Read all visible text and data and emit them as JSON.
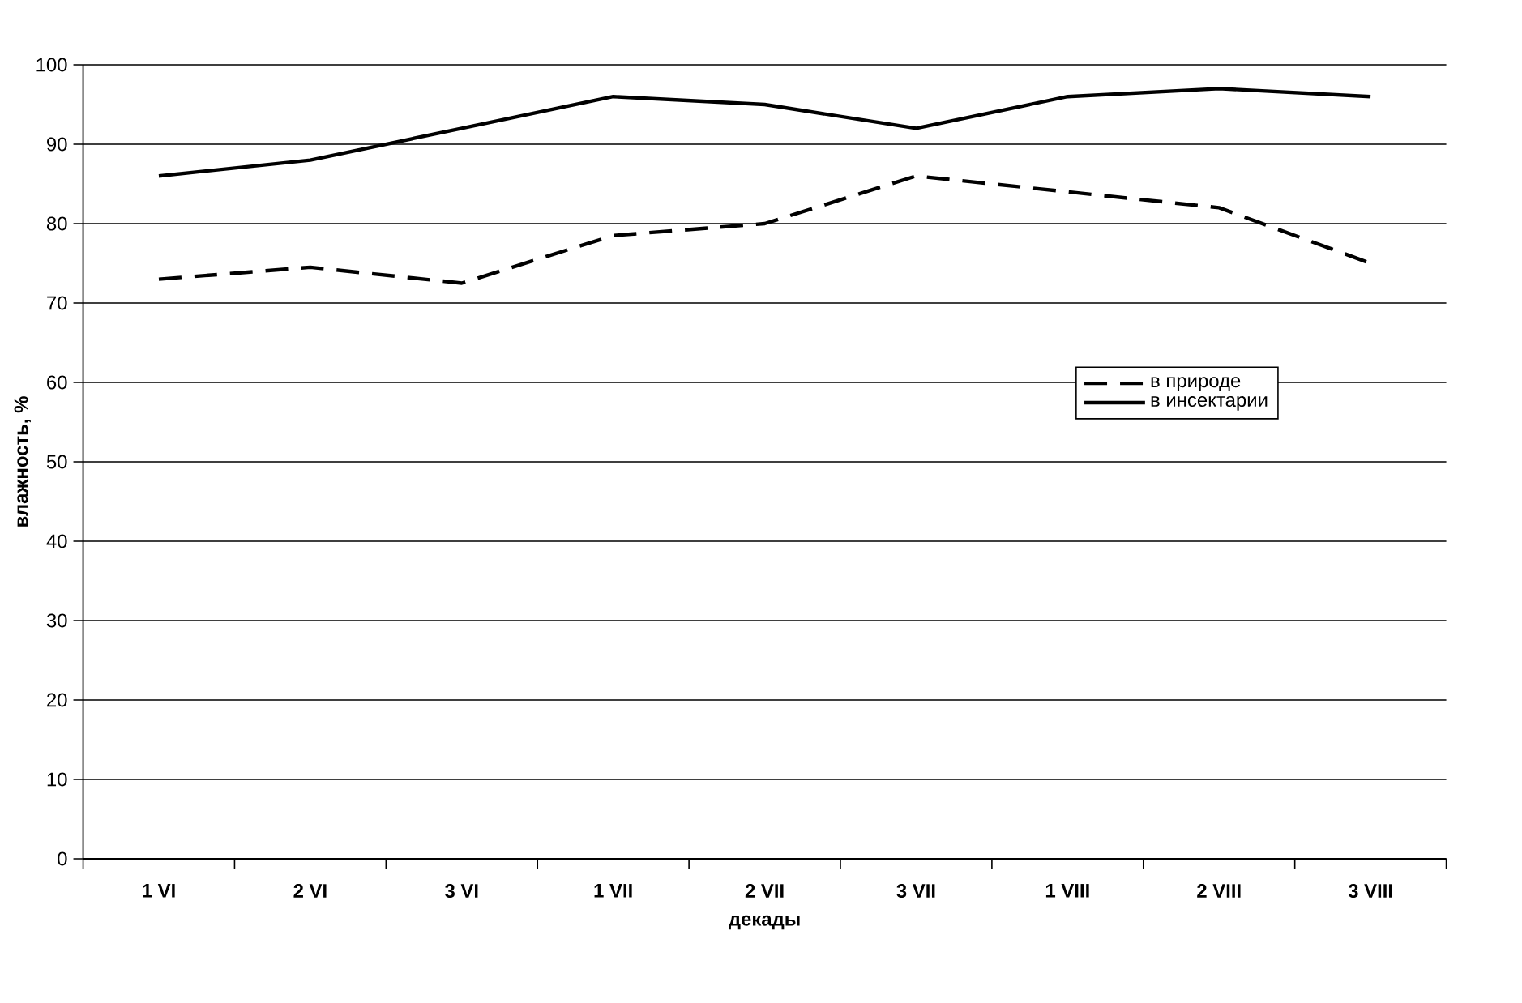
{
  "chart_data": {
    "type": "line",
    "xlabel": "декады",
    "ylabel": "влажность, %",
    "categories": [
      "1 VI",
      "2 VI",
      "3 VI",
      "1 VII",
      "2 VII",
      "3 VII",
      "1 VIII",
      "2 VIII",
      "3 VIII"
    ],
    "series": [
      {
        "name": "в природе",
        "color": "#000000",
        "line_style": "dashed",
        "values": [
          73,
          74.5,
          72.5,
          78.5,
          80,
          86,
          84,
          82,
          75
        ]
      },
      {
        "name": "в инсектарии",
        "color": "#000000",
        "line_style": "solid",
        "values": [
          86,
          88,
          92,
          96,
          95,
          92,
          96,
          97,
          96
        ]
      }
    ],
    "ylim": [
      0,
      100
    ],
    "yticks": [
      0,
      10,
      20,
      30,
      40,
      50,
      60,
      70,
      80,
      90,
      100
    ],
    "grid": "y",
    "legend": "right",
    "marker": "none"
  }
}
